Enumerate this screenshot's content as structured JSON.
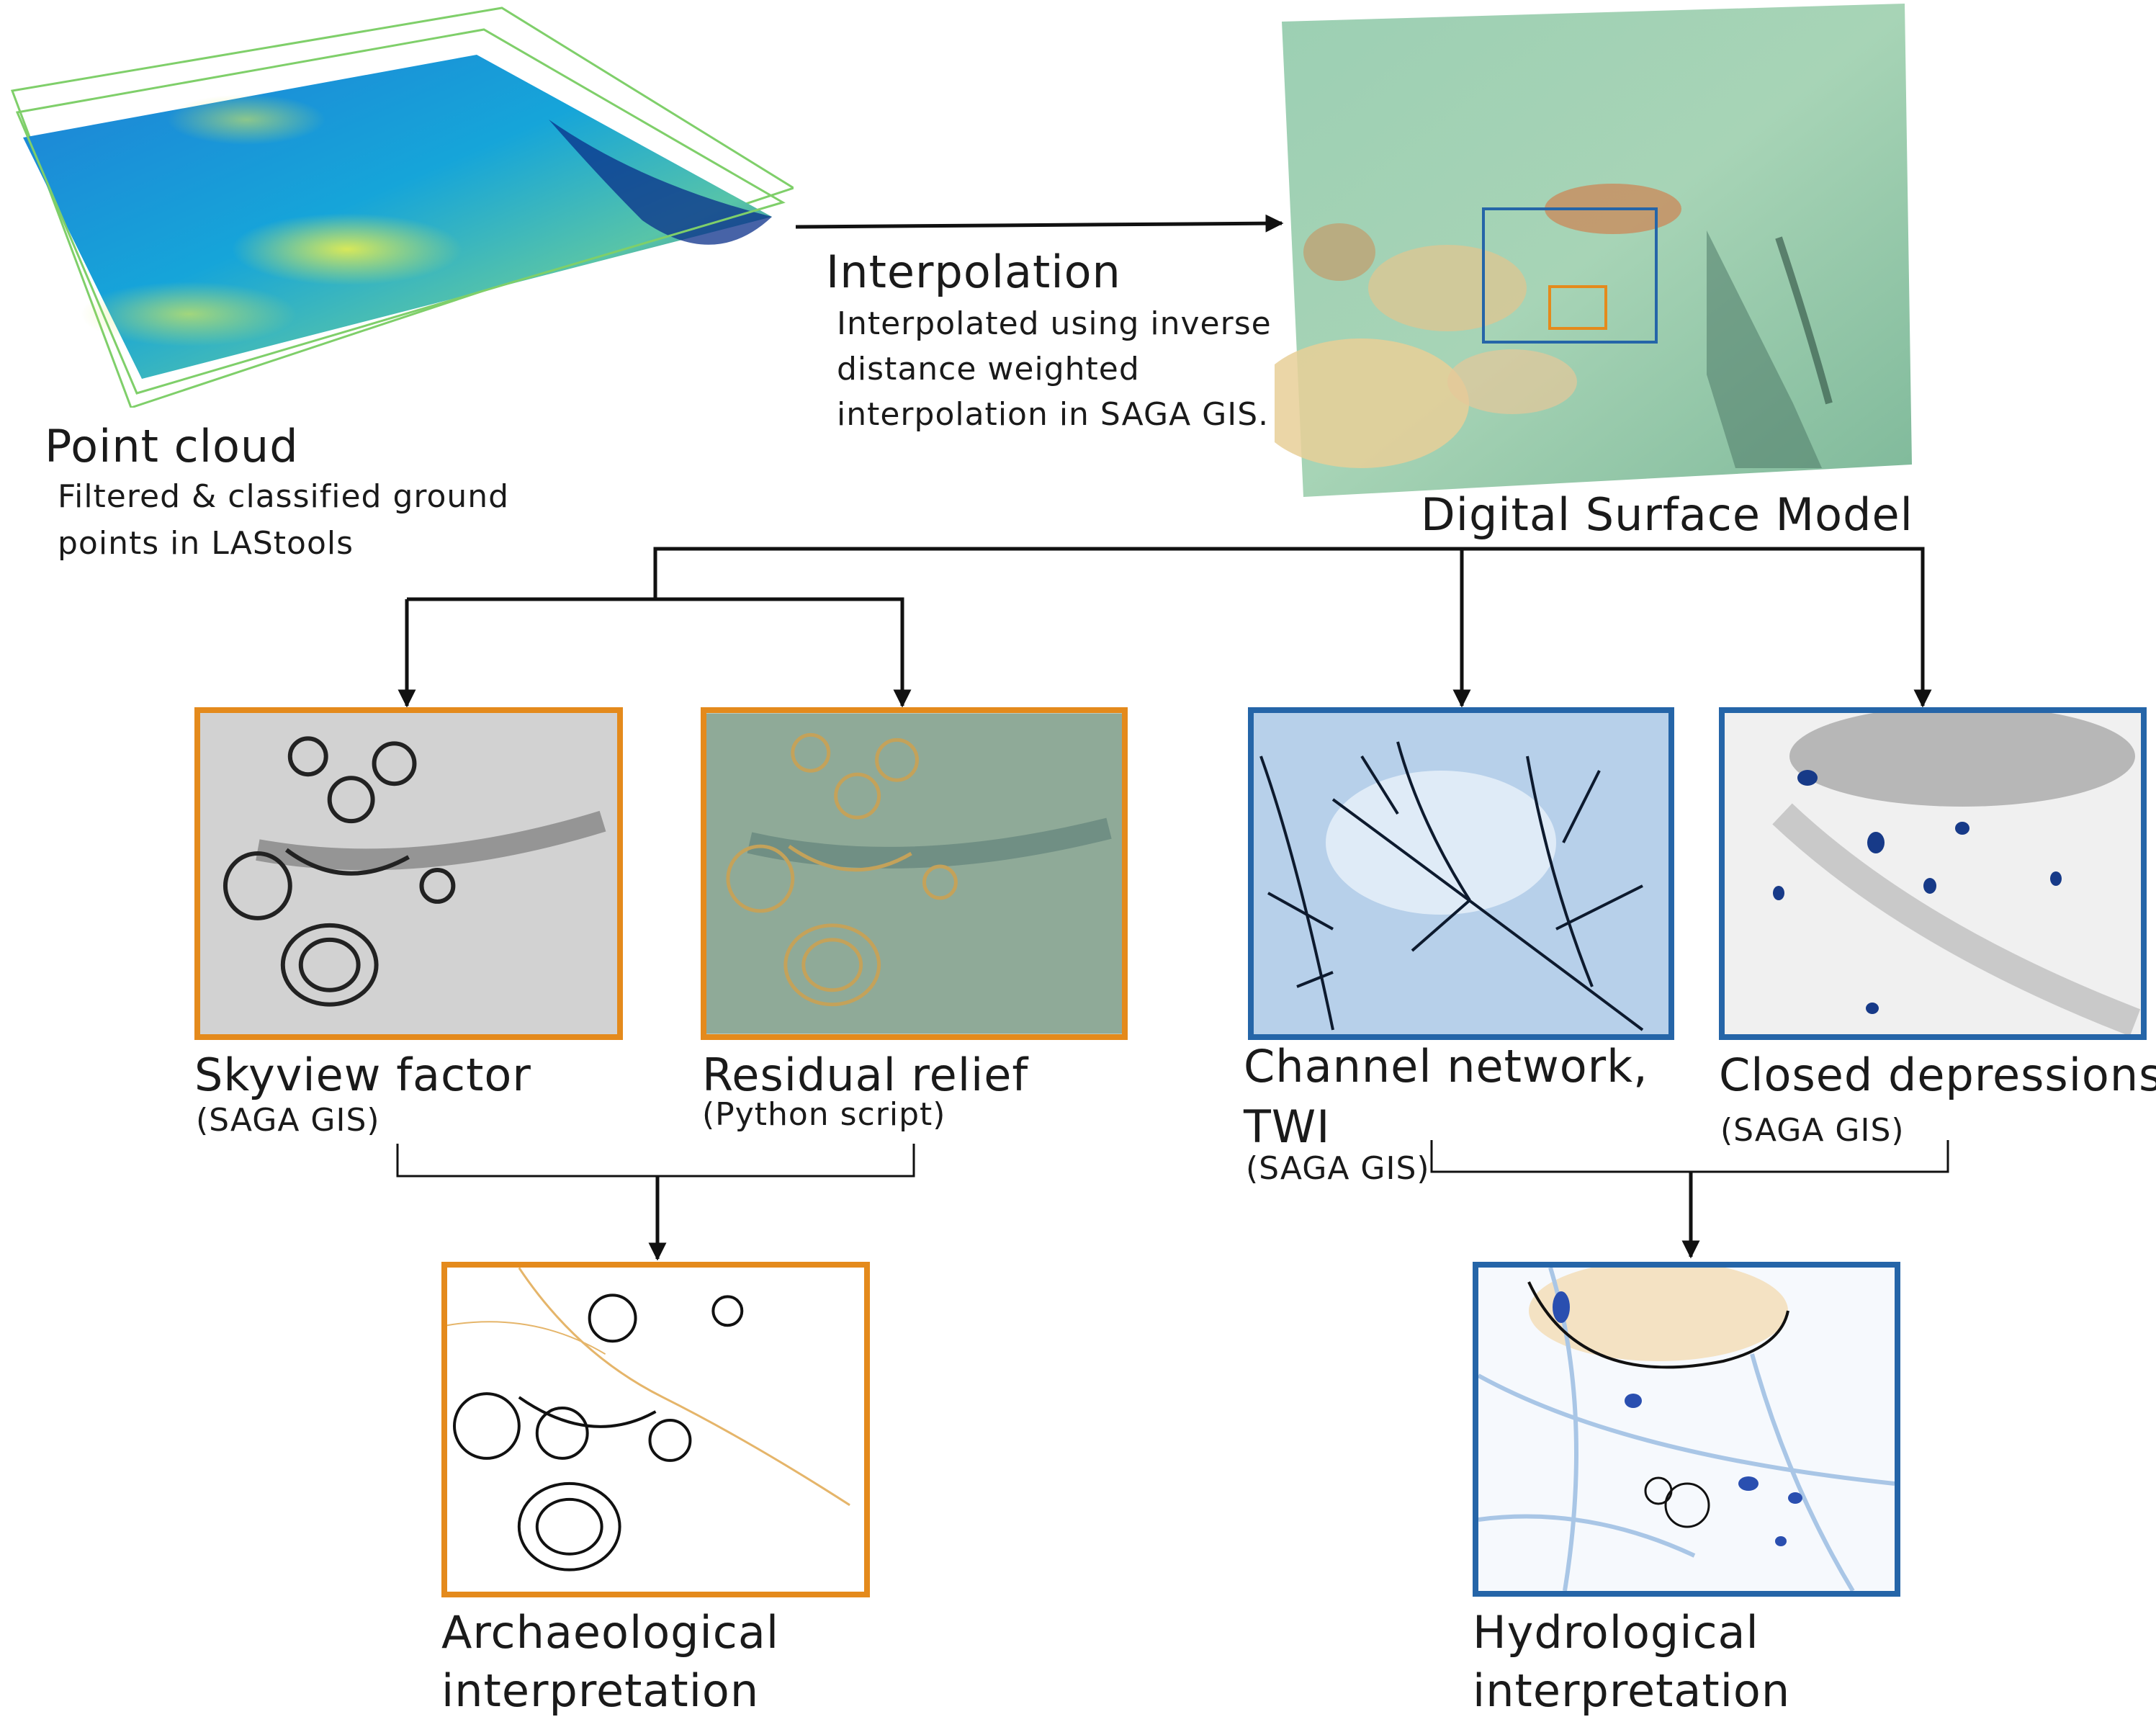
{
  "point_cloud": {
    "title": "Point cloud",
    "desc_line1": "Filtered & classified ground",
    "desc_line2": "points in LAStools"
  },
  "interpolation": {
    "title": "Interpolation",
    "desc_line1": "Interpolated using inverse",
    "desc_line2": "distance weighted",
    "desc_line3": "interpolation in SAGA GIS."
  },
  "dsm": {
    "title": "Digital Surface Model"
  },
  "skyview": {
    "title": "Skyview factor",
    "tool": "(SAGA GIS)"
  },
  "residual": {
    "title": "Residual relief",
    "tool": "(Python script)"
  },
  "channel": {
    "title_line1": "Channel network,",
    "title_line2": "TWI",
    "tool": "(SAGA GIS)"
  },
  "depressions": {
    "title": "Closed depressions",
    "tool": "(SAGA GIS)"
  },
  "archaeological": {
    "line1": "Archaeological",
    "line2": "interpretation"
  },
  "hydrological": {
    "line1": "Hydrological",
    "line2": "interpretation"
  },
  "colors": {
    "archaeology_frame": "#e48a1c",
    "hydrology_frame": "#2565a8",
    "arrow": "#111111"
  }
}
